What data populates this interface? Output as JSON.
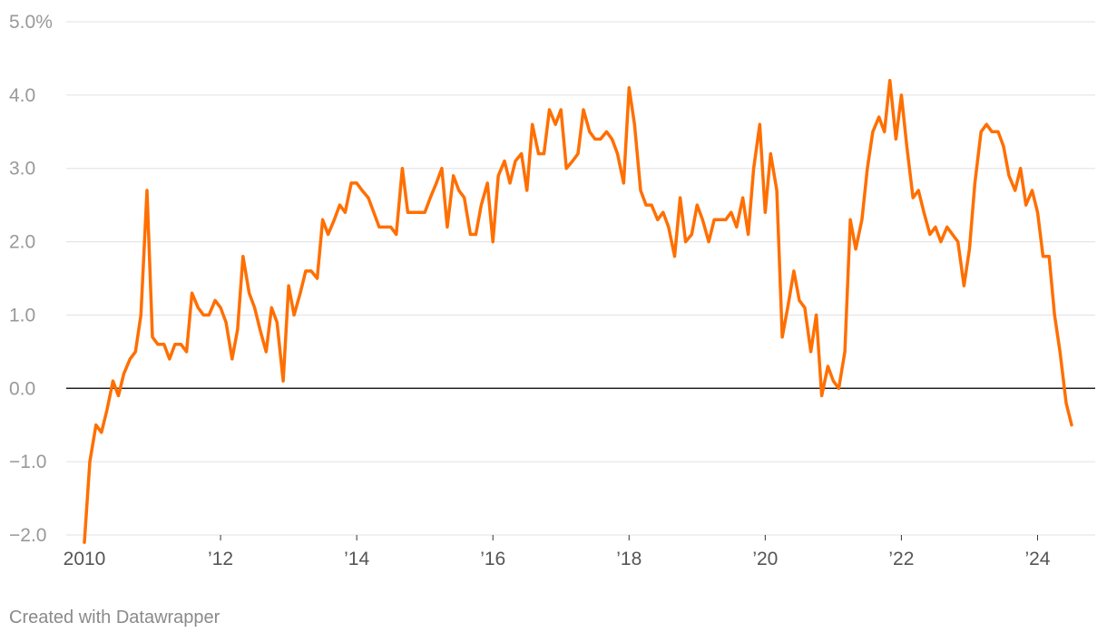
{
  "chart_data": {
    "type": "line",
    "title": "",
    "xlabel": "",
    "ylabel": "",
    "ylim": [
      -2.0,
      5.0
    ],
    "xlim": [
      2010.0,
      2024.58
    ],
    "grid": true,
    "y_ticks": [
      {
        "value": 5.0,
        "label": "5.0%"
      },
      {
        "value": 4.0,
        "label": "4.0"
      },
      {
        "value": 3.0,
        "label": "3.0"
      },
      {
        "value": 2.0,
        "label": "2.0"
      },
      {
        "value": 1.0,
        "label": "1.0"
      },
      {
        "value": 0.0,
        "label": "0.0"
      },
      {
        "value": -1.0,
        "label": "−1.0"
      },
      {
        "value": -2.0,
        "label": "−2.0"
      }
    ],
    "x_ticks": [
      {
        "value": 2010,
        "label": "2010"
      },
      {
        "value": 2012,
        "label": "’12"
      },
      {
        "value": 2014,
        "label": "’14"
      },
      {
        "value": 2016,
        "label": "’16"
      },
      {
        "value": 2018,
        "label": "’18"
      },
      {
        "value": 2020,
        "label": "’20"
      },
      {
        "value": 2022,
        "label": "’22"
      },
      {
        "value": 2024,
        "label": "’24"
      }
    ],
    "series": [
      {
        "color": "#ff6f00",
        "x": [
          2010.0,
          2010.08,
          2010.17,
          2010.25,
          2010.33,
          2010.42,
          2010.5,
          2010.58,
          2010.67,
          2010.75,
          2010.83,
          2010.92,
          2011.0,
          2011.08,
          2011.17,
          2011.25,
          2011.33,
          2011.42,
          2011.5,
          2011.58,
          2011.67,
          2011.75,
          2011.83,
          2011.92,
          2012.0,
          2012.08,
          2012.17,
          2012.25,
          2012.33,
          2012.42,
          2012.5,
          2012.58,
          2012.67,
          2012.75,
          2012.83,
          2012.92,
          2013.0,
          2013.08,
          2013.17,
          2013.25,
          2013.33,
          2013.42,
          2013.5,
          2013.58,
          2013.67,
          2013.75,
          2013.83,
          2013.92,
          2014.0,
          2014.08,
          2014.17,
          2014.25,
          2014.33,
          2014.42,
          2014.5,
          2014.58,
          2014.67,
          2014.75,
          2014.83,
          2014.92,
          2015.0,
          2015.08,
          2015.17,
          2015.25,
          2015.33,
          2015.42,
          2015.5,
          2015.58,
          2015.67,
          2015.75,
          2015.83,
          2015.92,
          2016.0,
          2016.08,
          2016.17,
          2016.25,
          2016.33,
          2016.42,
          2016.5,
          2016.58,
          2016.67,
          2016.75,
          2016.83,
          2016.92,
          2017.0,
          2017.08,
          2017.17,
          2017.25,
          2017.33,
          2017.42,
          2017.5,
          2017.58,
          2017.67,
          2017.75,
          2017.83,
          2017.92,
          2018.0,
          2018.08,
          2018.17,
          2018.25,
          2018.33,
          2018.42,
          2018.5,
          2018.58,
          2018.67,
          2018.75,
          2018.83,
          2018.92,
          2019.0,
          2019.08,
          2019.17,
          2019.25,
          2019.33,
          2019.42,
          2019.5,
          2019.58,
          2019.67,
          2019.75,
          2019.83,
          2019.92,
          2020.0,
          2020.08,
          2020.17,
          2020.25,
          2020.33,
          2020.42,
          2020.5,
          2020.58,
          2020.67,
          2020.75,
          2020.83,
          2020.92,
          2021.0,
          2021.08,
          2021.17,
          2021.25,
          2021.33,
          2021.42,
          2021.5,
          2021.58,
          2021.67,
          2021.75,
          2021.83,
          2021.92,
          2022.0,
          2022.08,
          2022.17,
          2022.25,
          2022.33,
          2022.42,
          2022.5,
          2022.58,
          2022.67,
          2022.75,
          2022.83,
          2022.92,
          2023.0,
          2023.08,
          2023.17,
          2023.25,
          2023.33,
          2023.42,
          2023.5,
          2023.58,
          2023.67,
          2023.75,
          2023.83,
          2023.92,
          2024.0,
          2024.08,
          2024.17,
          2024.25,
          2024.33,
          2024.42,
          2024.5
        ],
        "values": [
          -2.1,
          -1.0,
          -0.5,
          -0.6,
          -0.3,
          0.1,
          -0.1,
          0.2,
          0.4,
          0.5,
          1.0,
          2.7,
          0.7,
          0.6,
          0.6,
          0.4,
          0.6,
          0.6,
          0.5,
          1.3,
          1.1,
          1.0,
          1.0,
          1.2,
          1.1,
          0.9,
          0.4,
          0.8,
          1.8,
          1.3,
          1.1,
          0.8,
          0.5,
          1.1,
          0.9,
          0.1,
          1.4,
          1.0,
          1.3,
          1.6,
          1.6,
          1.5,
          2.3,
          2.1,
          2.3,
          2.5,
          2.4,
          2.8,
          2.8,
          2.7,
          2.6,
          2.4,
          2.2,
          2.2,
          2.2,
          2.1,
          3.0,
          2.4,
          2.4,
          2.4,
          2.4,
          2.6,
          2.8,
          3.0,
          2.2,
          2.9,
          2.7,
          2.6,
          2.1,
          2.1,
          2.5,
          2.8,
          2.0,
          2.9,
          3.1,
          2.8,
          3.1,
          3.2,
          2.7,
          3.6,
          3.2,
          3.2,
          3.8,
          3.6,
          3.8,
          3.0,
          3.1,
          3.2,
          3.8,
          3.5,
          3.4,
          3.4,
          3.5,
          3.4,
          3.2,
          2.8,
          4.1,
          3.6,
          2.7,
          2.5,
          2.5,
          2.3,
          2.4,
          2.2,
          1.8,
          2.6,
          2.0,
          2.1,
          2.5,
          2.3,
          2.0,
          2.3,
          2.3,
          2.3,
          2.4,
          2.2,
          2.6,
          2.1,
          3.0,
          3.6,
          2.4,
          3.2,
          2.7,
          0.7,
          1.1,
          1.6,
          1.2,
          1.1,
          0.5,
          1.0,
          -0.1,
          0.3,
          0.1,
          0.0,
          0.5,
          2.3,
          1.9,
          2.3,
          3.0,
          3.5,
          3.7,
          3.5,
          4.2,
          3.4,
          4.0,
          3.3,
          2.6,
          2.7,
          2.4,
          2.1,
          2.2,
          2.0,
          2.2,
          2.1,
          2.0,
          1.4,
          1.9,
          2.8,
          3.5,
          3.6,
          3.5,
          3.5,
          3.3,
          2.9,
          2.7,
          3.0,
          2.5,
          2.7,
          2.4,
          1.8,
          1.8,
          1.0,
          0.5,
          -0.2,
          -0.5
        ]
      }
    ]
  },
  "footer": {
    "credit": "Created with Datawrapper"
  }
}
